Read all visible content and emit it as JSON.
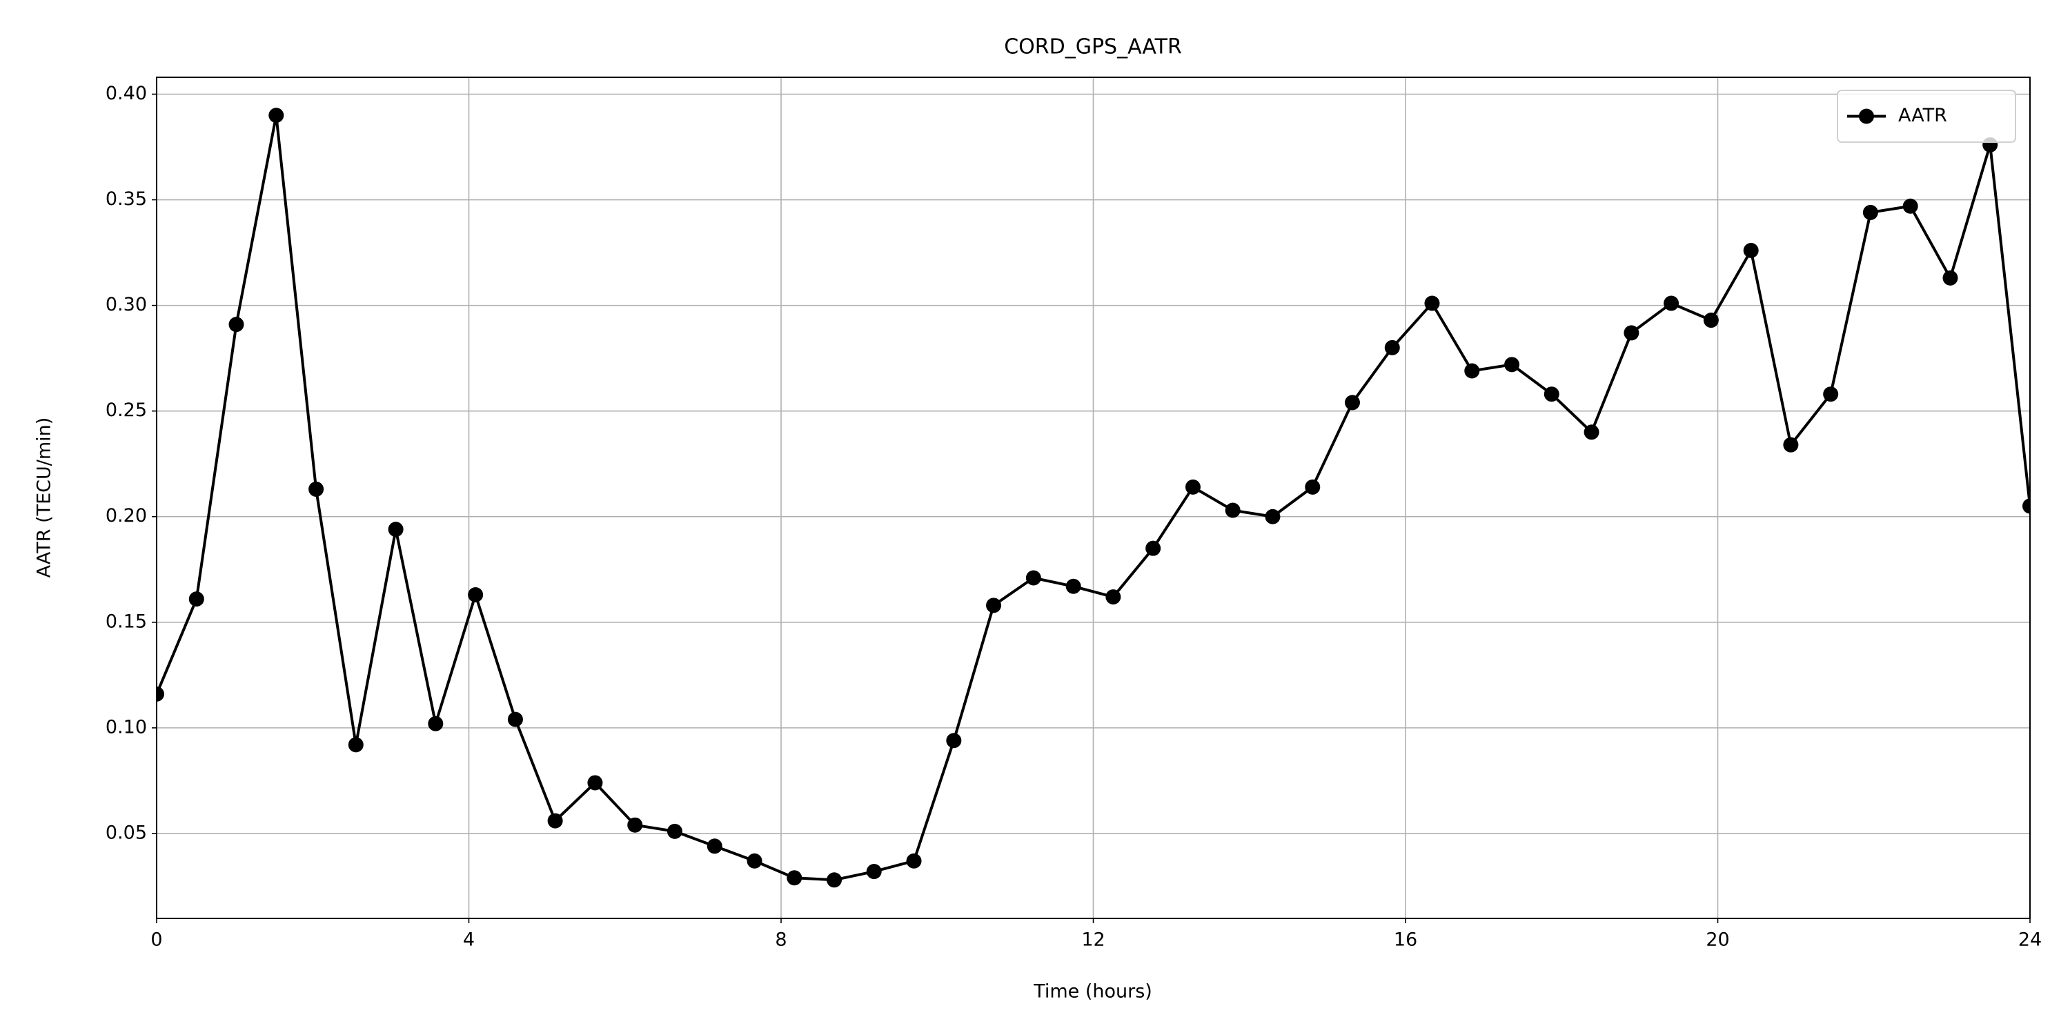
{
  "chart_data": {
    "type": "line",
    "title": "CORD_GPS_AATR",
    "xlabel": "Time (hours)",
    "ylabel": "AATR (TECU/min)",
    "x": [
      0,
      0.511,
      1.021,
      1.532,
      2.043,
      2.553,
      3.064,
      3.574,
      4.085,
      4.596,
      5.106,
      5.617,
      6.128,
      6.638,
      7.149,
      7.66,
      8.17,
      8.681,
      9.191,
      9.702,
      10.213,
      10.723,
      11.234,
      11.745,
      12.255,
      12.766,
      13.277,
      13.787,
      14.298,
      14.809,
      15.319,
      15.83,
      16.34,
      16.851,
      17.362,
      17.872,
      18.383,
      18.894,
      19.404,
      19.915,
      20.426,
      20.936,
      21.447,
      21.957,
      22.468,
      22.979,
      23.489,
      24
    ],
    "series": [
      {
        "name": "AATR",
        "color": "#000000",
        "values": [
          0.116,
          0.161,
          0.291,
          0.39,
          0.213,
          0.092,
          0.194,
          0.102,
          0.163,
          0.104,
          0.056,
          0.074,
          0.054,
          0.051,
          0.044,
          0.037,
          0.029,
          0.028,
          0.032,
          0.037,
          0.094,
          0.158,
          0.171,
          0.167,
          0.162,
          0.185,
          0.214,
          0.203,
          0.2,
          0.214,
          0.254,
          0.28,
          0.301,
          0.269,
          0.272,
          0.258,
          0.24,
          0.287,
          0.301,
          0.293,
          0.326,
          0.234,
          0.258,
          0.344,
          0.347,
          0.313,
          0.376,
          0.205
        ]
      }
    ],
    "xlim": [
      0,
      24
    ],
    "xticks": [
      0,
      4,
      8,
      12,
      16,
      20,
      24
    ],
    "ylim": [
      0.0098,
      0.408
    ],
    "yticks": [
      0.05,
      {
        "value": 0.1,
        "label": "0.10"
      },
      0.15,
      {
        "value": 0.2,
        "label": "0.20"
      },
      0.25,
      {
        "value": 0.3,
        "label": "0.30"
      },
      0.35,
      {
        "value": 0.4,
        "label": "0.40"
      }
    ],
    "grid": true,
    "legend": "upper right"
  }
}
